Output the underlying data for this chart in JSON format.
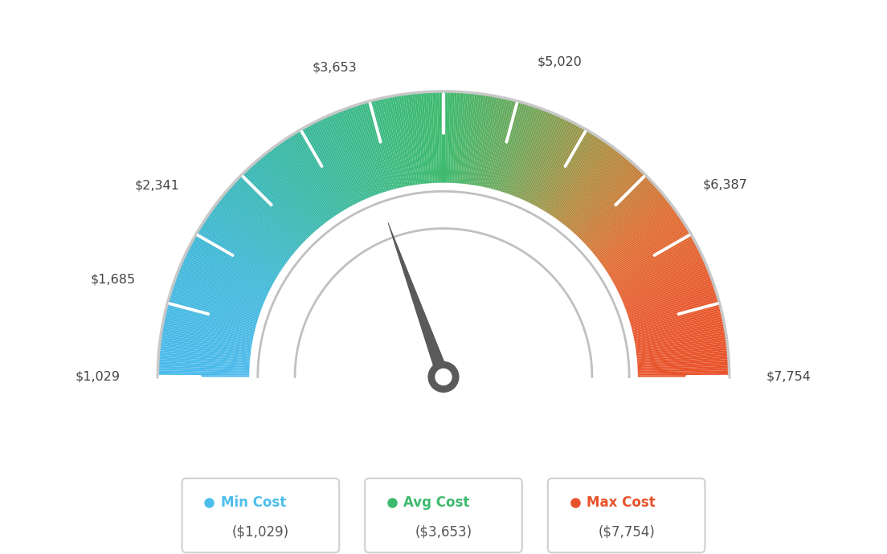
{
  "min_val": 1029,
  "max_val": 7754,
  "avg_val": 3653,
  "needle_value": 3653,
  "tick_labels": [
    "$1,029",
    "$1,685",
    "$2,341",
    "$3,653",
    "$5,020",
    "$6,387",
    "$7,754"
  ],
  "tick_values": [
    1029,
    1685,
    2341,
    3653,
    5020,
    6387,
    7754
  ],
  "legend": [
    {
      "label": "Min Cost",
      "value": "($1,029)",
      "color": "#4dbfed"
    },
    {
      "label": "Avg Cost",
      "value": "($3,653)",
      "color": "#3dba6e"
    },
    {
      "label": "Max Cost",
      "value": "($7,754)",
      "color": "#e8522a"
    }
  ],
  "background_color": "#ffffff",
  "color_stops": [
    [
      0.0,
      [
        0.3,
        0.73,
        0.93
      ]
    ],
    [
      0.15,
      [
        0.25,
        0.72,
        0.85
      ]
    ],
    [
      0.3,
      [
        0.22,
        0.72,
        0.65
      ]
    ],
    [
      0.45,
      [
        0.24,
        0.73,
        0.47
      ]
    ],
    [
      0.5,
      [
        0.24,
        0.73,
        0.43
      ]
    ],
    [
      0.6,
      [
        0.45,
        0.65,
        0.35
      ]
    ],
    [
      0.7,
      [
        0.7,
        0.55,
        0.25
      ]
    ],
    [
      0.8,
      [
        0.88,
        0.43,
        0.2
      ]
    ],
    [
      0.9,
      [
        0.91,
        0.35,
        0.18
      ]
    ],
    [
      1.0,
      [
        0.91,
        0.32,
        0.16
      ]
    ]
  ]
}
